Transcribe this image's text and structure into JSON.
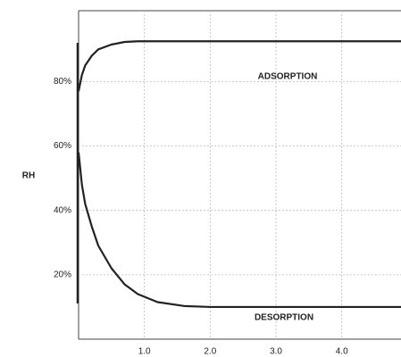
{
  "chart_data": {
    "type": "line",
    "y_label": "RH",
    "x": [
      0,
      0.05,
      0.1,
      0.2,
      0.3,
      0.5,
      0.7,
      0.9,
      1.2,
      1.6,
      2,
      3,
      4,
      4.9
    ],
    "series": [
      {
        "name": "ADSORPTION",
        "color": "#222222",
        "values": [
          77,
          82,
          85,
          88,
          90,
          91.5,
          92.3,
          92.5,
          92.5,
          92.5,
          92.5,
          92.5,
          92.5,
          92.5
        ]
      },
      {
        "name": "DESORPTION",
        "color": "#222222",
        "values": [
          58,
          48,
          42,
          35,
          29,
          22,
          17,
          14,
          11.5,
          10.3,
          10,
          10,
          10,
          10
        ]
      }
    ],
    "xlim": [
      0,
      4.9
    ],
    "ylim": [
      0,
      102
    ],
    "xticks": [
      {
        "value": 1,
        "label": "1.0"
      },
      {
        "value": 2,
        "label": "2.0"
      },
      {
        "value": 3,
        "label": "3.0"
      },
      {
        "value": 4,
        "label": "4.0"
      }
    ],
    "yticks": [
      {
        "value": 20,
        "label": "20%"
      },
      {
        "value": 40,
        "label": "40%"
      },
      {
        "value": 60,
        "label": "60%"
      },
      {
        "value": 80,
        "label": "80%"
      }
    ],
    "grid": true
  }
}
